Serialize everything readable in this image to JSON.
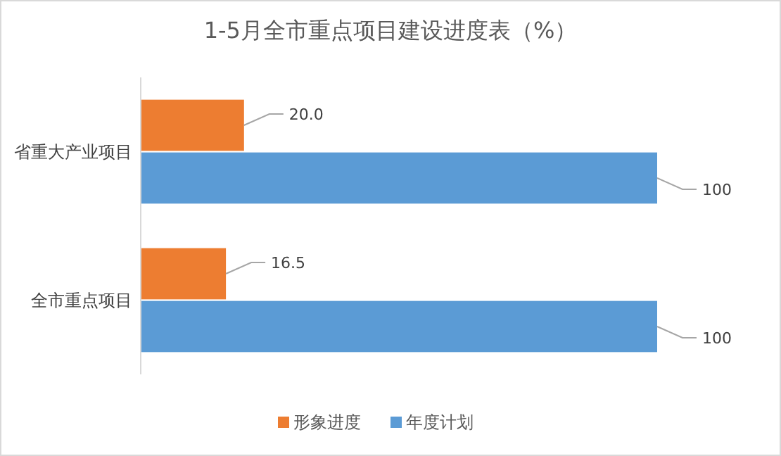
{
  "chart_data": {
    "type": "bar",
    "title": "1-5月全市重点项目建设进度表（%）",
    "orientation": "horizontal",
    "categories": [
      "省重大产业项目",
      "全市重点项目"
    ],
    "legend": "bottom",
    "series": [
      {
        "name": "形象进度",
        "color": "#ed7d31",
        "values": [
          20.0,
          16.5
        ],
        "value_labels": [
          "20.0",
          "16.5"
        ]
      },
      {
        "name": "年度计划",
        "color": "#5b9bd5",
        "values": [
          100,
          100
        ],
        "value_labels": [
          "100",
          "100"
        ]
      }
    ]
  }
}
